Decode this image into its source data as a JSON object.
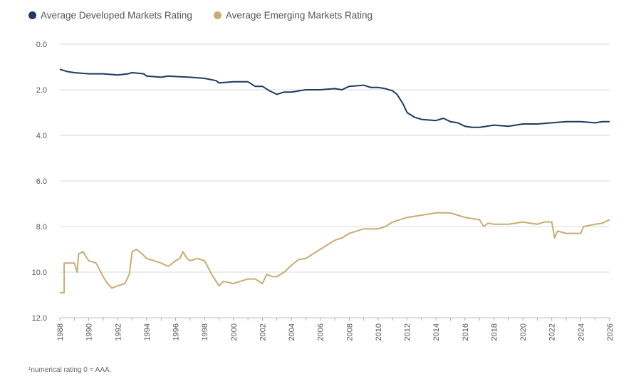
{
  "chart_data": {
    "type": "line",
    "title": "",
    "xlabel": "",
    "ylabel": "",
    "x_range": [
      1988,
      2026
    ],
    "ylim": [
      12.0,
      0.0
    ],
    "y_inverted": true,
    "y_ticks": [
      "0.0",
      "2.0",
      "4.0",
      "6.0",
      "8.0",
      "10.0",
      "12.0"
    ],
    "x_ticks": [
      "1988",
      "1990",
      "1992",
      "1994",
      "1996",
      "1998",
      "2000",
      "2002",
      "2004",
      "2006",
      "2008",
      "2010",
      "2012",
      "2014",
      "2016",
      "2018",
      "2020",
      "2022",
      "2024",
      "2026"
    ],
    "grid": "horizontal",
    "legend_position": "top-left",
    "series": [
      {
        "name": "Average Developed Markets Rating",
        "color": "#1f3a5f",
        "points": [
          [
            1988.0,
            1.1
          ],
          [
            1988.5,
            1.2
          ],
          [
            1989.0,
            1.25
          ],
          [
            1990.0,
            1.3
          ],
          [
            1991.0,
            1.3
          ],
          [
            1992.0,
            1.35
          ],
          [
            1992.7,
            1.3
          ],
          [
            1993.0,
            1.25
          ],
          [
            1993.8,
            1.3
          ],
          [
            1994.0,
            1.4
          ],
          [
            1995.0,
            1.45
          ],
          [
            1995.5,
            1.4
          ],
          [
            1996.0,
            1.42
          ],
          [
            1997.0,
            1.45
          ],
          [
            1998.0,
            1.5
          ],
          [
            1998.8,
            1.6
          ],
          [
            1999.0,
            1.7
          ],
          [
            2000.0,
            1.65
          ],
          [
            2001.0,
            1.65
          ],
          [
            2001.5,
            1.85
          ],
          [
            2002.0,
            1.85
          ],
          [
            2002.5,
            2.05
          ],
          [
            2003.0,
            2.2
          ],
          [
            2003.5,
            2.1
          ],
          [
            2004.0,
            2.1
          ],
          [
            2004.5,
            2.05
          ],
          [
            2005.0,
            2.0
          ],
          [
            2006.0,
            2.0
          ],
          [
            2007.0,
            1.95
          ],
          [
            2007.5,
            2.0
          ],
          [
            2008.0,
            1.85
          ],
          [
            2009.0,
            1.8
          ],
          [
            2009.5,
            1.9
          ],
          [
            2010.0,
            1.9
          ],
          [
            2010.5,
            1.95
          ],
          [
            2011.0,
            2.05
          ],
          [
            2011.3,
            2.2
          ],
          [
            2011.7,
            2.6
          ],
          [
            2012.0,
            3.0
          ],
          [
            2012.5,
            3.2
          ],
          [
            2013.0,
            3.3
          ],
          [
            2014.0,
            3.35
          ],
          [
            2014.5,
            3.25
          ],
          [
            2015.0,
            3.4
          ],
          [
            2015.5,
            3.45
          ],
          [
            2016.0,
            3.6
          ],
          [
            2016.5,
            3.65
          ],
          [
            2017.0,
            3.65
          ],
          [
            2017.5,
            3.6
          ],
          [
            2018.0,
            3.55
          ],
          [
            2019.0,
            3.6
          ],
          [
            2020.0,
            3.5
          ],
          [
            2021.0,
            3.5
          ],
          [
            2022.0,
            3.45
          ],
          [
            2023.0,
            3.4
          ],
          [
            2024.0,
            3.4
          ],
          [
            2025.0,
            3.45
          ],
          [
            2025.5,
            3.4
          ],
          [
            2026.0,
            3.4
          ]
        ]
      },
      {
        "name": "Average Emerging Markets Rating",
        "color": "#c8ad73",
        "points": [
          [
            1988.0,
            10.9
          ],
          [
            1988.3,
            10.9
          ],
          [
            1988.3,
            9.6
          ],
          [
            1989.0,
            9.6
          ],
          [
            1989.2,
            10.0
          ],
          [
            1989.3,
            9.2
          ],
          [
            1989.6,
            9.1
          ],
          [
            1990.0,
            9.5
          ],
          [
            1990.5,
            9.6
          ],
          [
            1991.0,
            10.2
          ],
          [
            1991.3,
            10.5
          ],
          [
            1991.6,
            10.7
          ],
          [
            1992.0,
            10.6
          ],
          [
            1992.5,
            10.5
          ],
          [
            1992.8,
            10.1
          ],
          [
            1993.0,
            9.1
          ],
          [
            1993.3,
            9.0
          ],
          [
            1993.7,
            9.2
          ],
          [
            1994.0,
            9.4
          ],
          [
            1995.0,
            9.6
          ],
          [
            1995.5,
            9.75
          ],
          [
            1996.0,
            9.5
          ],
          [
            1996.3,
            9.4
          ],
          [
            1996.5,
            9.1
          ],
          [
            1996.8,
            9.4
          ],
          [
            1997.0,
            9.5
          ],
          [
            1997.5,
            9.4
          ],
          [
            1998.0,
            9.5
          ],
          [
            1998.5,
            10.1
          ],
          [
            1999.0,
            10.6
          ],
          [
            1999.3,
            10.4
          ],
          [
            2000.0,
            10.5
          ],
          [
            2000.5,
            10.4
          ],
          [
            2001.0,
            10.3
          ],
          [
            2001.5,
            10.3
          ],
          [
            2002.0,
            10.5
          ],
          [
            2002.3,
            10.1
          ],
          [
            2002.7,
            10.2
          ],
          [
            2003.0,
            10.2
          ],
          [
            2003.5,
            10.0
          ],
          [
            2004.0,
            9.7
          ],
          [
            2004.5,
            9.45
          ],
          [
            2005.0,
            9.4
          ],
          [
            2005.5,
            9.2
          ],
          [
            2006.0,
            9.0
          ],
          [
            2006.5,
            8.8
          ],
          [
            2007.0,
            8.6
          ],
          [
            2007.5,
            8.5
          ],
          [
            2008.0,
            8.3
          ],
          [
            2008.5,
            8.2
          ],
          [
            2009.0,
            8.1
          ],
          [
            2010.0,
            8.1
          ],
          [
            2010.5,
            8.0
          ],
          [
            2011.0,
            7.8
          ],
          [
            2011.5,
            7.7
          ],
          [
            2012.0,
            7.6
          ],
          [
            2013.0,
            7.5
          ],
          [
            2014.0,
            7.4
          ],
          [
            2015.0,
            7.4
          ],
          [
            2015.5,
            7.5
          ],
          [
            2016.0,
            7.6
          ],
          [
            2017.0,
            7.7
          ],
          [
            2017.3,
            8.0
          ],
          [
            2017.6,
            7.85
          ],
          [
            2018.0,
            7.9
          ],
          [
            2019.0,
            7.9
          ],
          [
            2019.5,
            7.85
          ],
          [
            2020.0,
            7.8
          ],
          [
            2020.5,
            7.85
          ],
          [
            2021.0,
            7.9
          ],
          [
            2021.5,
            7.8
          ],
          [
            2022.0,
            7.8
          ],
          [
            2022.2,
            8.5
          ],
          [
            2022.4,
            8.2
          ],
          [
            2023.0,
            8.3
          ],
          [
            2024.0,
            8.3
          ],
          [
            2024.2,
            8.0
          ],
          [
            2025.0,
            7.9
          ],
          [
            2025.5,
            7.85
          ],
          [
            2026.0,
            7.7
          ]
        ]
      }
    ]
  },
  "footnote": "¹numerical rating 0 = AAA."
}
